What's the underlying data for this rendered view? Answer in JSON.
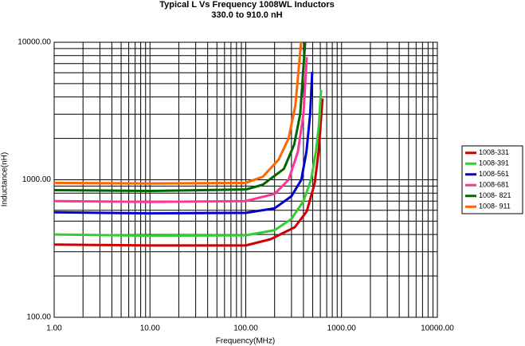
{
  "chart_data": {
    "type": "line",
    "title": "Typical L Vs Frequency 1008WL Inductors",
    "subtitle": "330.0 to 910.0 nH",
    "x_label": "Frequency(MHz)",
    "y_label": "Inductance(nH)",
    "x_scale": "log",
    "y_scale": "log",
    "grid": true,
    "legend_position": "right",
    "xlim": [
      1,
      10000
    ],
    "xticks": [
      {
        "value": 1,
        "label": "1.00"
      },
      {
        "value": 10,
        "label": "10.00"
      },
      {
        "value": 100,
        "label": "100.00"
      },
      {
        "value": 1000,
        "label": "1000.00"
      },
      {
        "value": 10000,
        "label": "10000.00"
      }
    ],
    "ylim": [
      100,
      10000
    ],
    "yticks": [
      {
        "value": 100,
        "label": "100.00"
      },
      {
        "value": 1000,
        "label": "1000.00"
      },
      {
        "value": 10000,
        "label": "10000.00"
      }
    ],
    "series": [
      {
        "name": "1008-331",
        "color": "#cc0000",
        "x": [
          1,
          10,
          100,
          182,
          325,
          433,
          524,
          576,
          633
        ],
        "values": [
          338,
          333,
          333,
          370,
          452,
          589,
          942,
          1606,
          3900
        ]
      },
      {
        "name": "1008-391",
        "color": "#33cc33",
        "x": [
          1,
          10,
          100,
          200,
          300,
          400,
          480,
          540,
          580,
          611
        ],
        "values": [
          400,
          392,
          395,
          430,
          520,
          700,
          1000,
          1600,
          2500,
          4500
        ]
      },
      {
        "name": "1008-561",
        "color": "#0000cc",
        "x": [
          1,
          10,
          100,
          200,
          300,
          380,
          430,
          470,
          494
        ],
        "values": [
          580,
          570,
          575,
          620,
          760,
          1000,
          1600,
          3000,
          6100
        ]
      },
      {
        "name": "1008-681",
        "color": "#ff3399",
        "x": [
          1,
          10,
          100,
          200,
          280,
          350,
          400,
          433
        ],
        "values": [
          700,
          690,
          700,
          790,
          1000,
          1600,
          3000,
          7800
        ]
      },
      {
        "name": "1008- 821",
        "color": "#006600",
        "x": [
          1,
          10,
          100,
          150,
          250,
          320,
          370,
          417
        ],
        "values": [
          840,
          830,
          850,
          920,
          1200,
          1800,
          3000,
          10000
        ]
      },
      {
        "name": "1008- 911",
        "color": "#ff6600",
        "x": [
          1,
          10,
          100,
          150,
          220,
          280,
          330,
          378
        ],
        "values": [
          950,
          940,
          950,
          1050,
          1400,
          2000,
          3500,
          10000
        ]
      }
    ]
  }
}
